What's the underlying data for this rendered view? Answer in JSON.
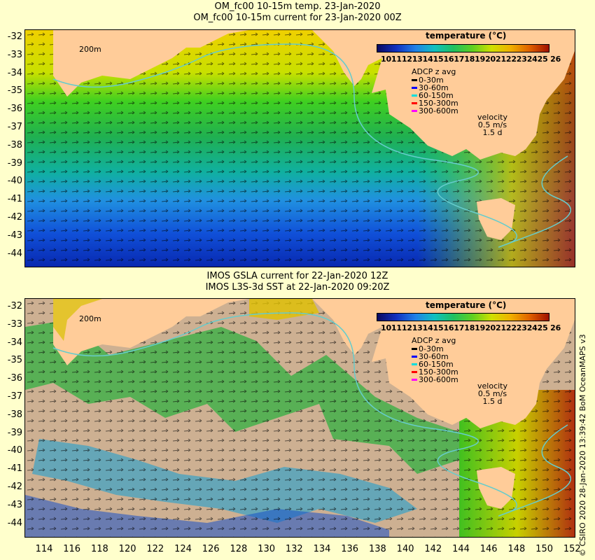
{
  "top_panel": {
    "title_line1": "OM_fc00 10-15m temp. 23-Jan-2020",
    "title_line2": "OM_fc00 10-15m current for 23-Jan-2020 00Z"
  },
  "bottom_panel": {
    "title_line1": "IMOS GSLA current for 22-Jan-2020 12Z",
    "title_line2": "IMOS L3S-3d SST at 22-Jan-2020 09:20Z"
  },
  "colorbar": {
    "title": "temperature (°C)",
    "ticks": "10111213141516171819202122232425 26"
  },
  "adcp": {
    "title": "ADCP z avg",
    "items": [
      {
        "label": "0-30m",
        "color": "#000000"
      },
      {
        "label": "30-60m",
        "color": "#0000ff"
      },
      {
        "label": "60-150m",
        "color": "#00dddd"
      },
      {
        "label": "150-300m",
        "color": "#ff0000"
      },
      {
        "label": "300-600m",
        "color": "#ff00ff"
      }
    ]
  },
  "velocity": {
    "title": "velocity",
    "speed": "0.5 m/s",
    "time": "1.5 d"
  },
  "isobath_label": "200m",
  "y_axis": [
    "-32",
    "-33",
    "-34",
    "-35",
    "-36",
    "-37",
    "-38",
    "-39",
    "-40",
    "-41",
    "-42",
    "-43",
    "-44"
  ],
  "x_axis": [
    "114",
    "116",
    "118",
    "120",
    "122",
    "124",
    "126",
    "128",
    "130",
    "132",
    "134",
    "136",
    "138",
    "140",
    "142",
    "144",
    "146",
    "148",
    "150",
    "152"
  ],
  "copyright": "© CSIRO 2020   28-Jan-2020 13:39:42 BoM OceanMAPS v3",
  "colors": {
    "page_background": "#ffffcc",
    "land": "#ffcc99",
    "no_data": "#cdb092",
    "isobath": "#66cccc"
  }
}
